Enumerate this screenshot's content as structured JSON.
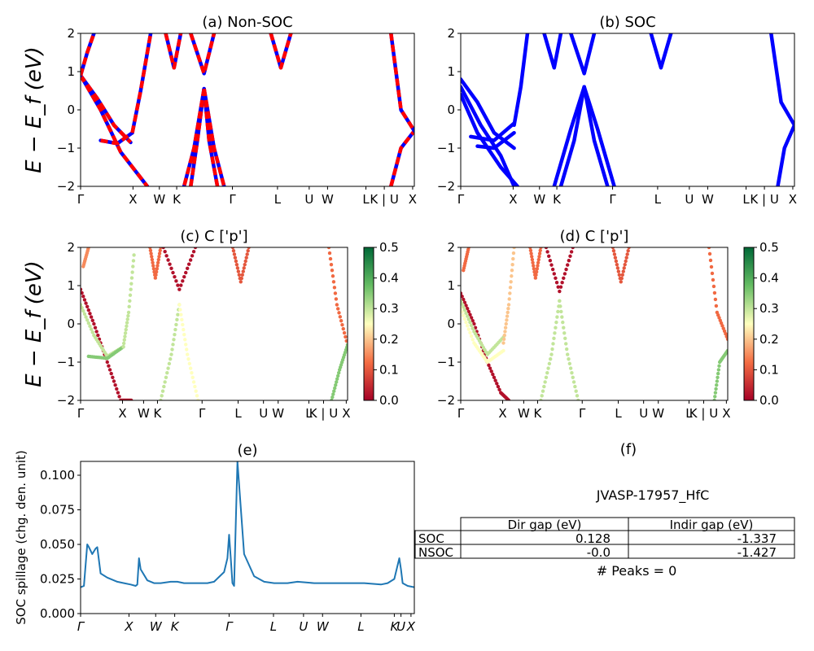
{
  "chart_data": [
    {
      "id": "a",
      "type": "line",
      "title": "(a) Non-SOC",
      "ylabel": "E − E_f (eV)",
      "ylim": [
        -2,
        2
      ],
      "yticks": [
        "2",
        "1",
        "0",
        "−1",
        "−2"
      ],
      "xticks": [
        "Γ",
        "X",
        "W",
        "K",
        "Γ",
        "L",
        "U",
        "W",
        "L",
        "K | U",
        "X"
      ],
      "colors": [
        "#ff0000",
        "#0000ff"
      ],
      "series": [
        {
          "x": [
            0.0,
            0.05,
            0.1,
            0.15
          ],
          "y": [
            0.9,
            0.3,
            -0.4,
            -0.85
          ]
        },
        {
          "x": [
            0.0,
            0.06,
            0.12,
            0.2
          ],
          "y": [
            0.9,
            0.0,
            -1.1,
            -2.0
          ]
        },
        {
          "x": [
            0.0,
            0.02,
            0.04
          ],
          "y": [
            0.9,
            1.5,
            2.0
          ]
        },
        {
          "x": [
            0.06,
            0.11,
            0.155
          ],
          "y": [
            -0.8,
            -0.88,
            -0.6
          ]
        },
        {
          "x": [
            0.155,
            0.18,
            0.21
          ],
          "y": [
            -0.6,
            0.5,
            2.0
          ]
        },
        {
          "x": [
            0.255,
            0.28,
            0.3
          ],
          "y": [
            2.0,
            1.1,
            2.0
          ]
        },
        {
          "x": [
            0.33,
            0.37,
            0.4
          ],
          "y": [
            2.0,
            0.95,
            2.0
          ]
        },
        {
          "x": [
            0.37,
            0.35,
            0.33
          ],
          "y": [
            0.55,
            -0.8,
            -2.0
          ]
        },
        {
          "x": [
            0.37,
            0.385,
            0.41
          ],
          "y": [
            0.55,
            -0.8,
            -2.0
          ]
        },
        {
          "x": [
            0.37,
            0.34,
            0.31
          ],
          "y": [
            0.55,
            -1.0,
            -2.0
          ]
        },
        {
          "x": [
            0.37,
            0.4,
            0.43
          ],
          "y": [
            0.55,
            -1.0,
            -2.0
          ]
        },
        {
          "x": [
            0.57,
            0.6,
            0.63
          ],
          "y": [
            2.0,
            1.1,
            2.0
          ]
        },
        {
          "x": [
            0.93,
            0.96,
            1.0
          ],
          "y": [
            -2.0,
            -1.0,
            -0.55
          ]
        },
        {
          "x": [
            0.93,
            0.96,
            1.0
          ],
          "y": [
            2.0,
            0.0,
            -0.55
          ]
        }
      ]
    },
    {
      "id": "b",
      "type": "line",
      "title": "(b) SOC",
      "ylim": [
        -2,
        2
      ],
      "yticks": [
        "2",
        "1",
        "0",
        "−1",
        "−2"
      ],
      "xticks": [
        "Γ",
        "X",
        "W",
        "K",
        "Γ",
        "L",
        "U",
        "W",
        "L",
        "K | U",
        "X"
      ],
      "colors": [
        "#0000ff"
      ],
      "series": [
        {
          "x": [
            0.0,
            0.05,
            0.1,
            0.16
          ],
          "y": [
            0.8,
            0.2,
            -0.6,
            -1.0
          ]
        },
        {
          "x": [
            0.0,
            0.06,
            0.12,
            0.16
          ],
          "y": [
            0.6,
            -0.4,
            -1.2,
            -2.0
          ]
        },
        {
          "x": [
            0.0,
            0.05,
            0.12,
            0.17
          ],
          "y": [
            0.4,
            -0.6,
            -1.5,
            -2.0
          ]
        },
        {
          "x": [
            0.03,
            0.1,
            0.16
          ],
          "y": [
            -0.7,
            -0.8,
            -0.35
          ]
        },
        {
          "x": [
            0.05,
            0.1,
            0.16
          ],
          "y": [
            -0.95,
            -1.0,
            -0.6
          ]
        },
        {
          "x": [
            0.16,
            0.18,
            0.2
          ],
          "y": [
            -0.4,
            0.6,
            2.0
          ]
        },
        {
          "x": [
            0.25,
            0.28,
            0.3
          ],
          "y": [
            2.0,
            1.1,
            2.0
          ]
        },
        {
          "x": [
            0.33,
            0.37,
            0.4
          ],
          "y": [
            2.0,
            0.95,
            2.0
          ]
        },
        {
          "x": [
            0.37,
            0.34,
            0.3
          ],
          "y": [
            0.6,
            -0.8,
            -2.0
          ]
        },
        {
          "x": [
            0.37,
            0.4,
            0.44
          ],
          "y": [
            0.6,
            -0.8,
            -2.0
          ]
        },
        {
          "x": [
            0.37,
            0.33,
            0.28
          ],
          "y": [
            0.6,
            -0.5,
            -2.0
          ]
        },
        {
          "x": [
            0.37,
            0.41,
            0.46
          ],
          "y": [
            0.6,
            -0.5,
            -2.0
          ]
        },
        {
          "x": [
            0.57,
            0.6,
            0.63
          ],
          "y": [
            2.0,
            1.1,
            2.0
          ]
        },
        {
          "x": [
            0.93,
            0.96,
            1.0
          ],
          "y": [
            2.0,
            0.2,
            -0.4
          ]
        },
        {
          "x": [
            0.95,
            0.97,
            1.0
          ],
          "y": [
            -2.0,
            -1.0,
            -0.4
          ]
        }
      ]
    },
    {
      "id": "c",
      "type": "scatter",
      "title": "(c)  C ['p']",
      "ylabel": "E − E_f (eV)",
      "ylim": [
        -2,
        2
      ],
      "yticks": [
        "2",
        "1",
        "0",
        "−1",
        "−2"
      ],
      "xticks": [
        "Γ",
        "X",
        "W",
        "K",
        "Γ",
        "L",
        "U",
        "W",
        "L",
        "K | U",
        "X"
      ],
      "colorbar": {
        "min": 0.0,
        "max": 0.5,
        "ticks": [
          "0.5",
          "0.4",
          "0.3",
          "0.2",
          "0.1",
          "0.0"
        ]
      },
      "series": [
        {
          "x": [
            0.0,
            0.05,
            0.1,
            0.15,
            0.19
          ],
          "y": [
            0.9,
            0.0,
            -1.0,
            -2.0,
            -2.0
          ],
          "c": 0.02
        },
        {
          "x": [
            0.0,
            0.05,
            0.1,
            0.16
          ],
          "y": [
            0.5,
            -0.3,
            -0.85,
            -0.6
          ],
          "c": 0.3
        },
        {
          "x": [
            0.03,
            0.1,
            0.16
          ],
          "y": [
            -0.85,
            -0.9,
            -0.6
          ],
          "c": 0.35
        },
        {
          "x": [
            0.16,
            0.18,
            0.2
          ],
          "y": [
            -0.6,
            0.3,
            1.8
          ],
          "c": 0.3
        },
        {
          "x": [
            0.03,
            0.01
          ],
          "y": [
            2.0,
            1.5
          ],
          "c": 0.15
        },
        {
          "x": [
            0.26,
            0.28,
            0.3
          ],
          "y": [
            2.0,
            1.2,
            2.0
          ],
          "c": 0.12
        },
        {
          "x": [
            0.31,
            0.37,
            0.43
          ],
          "y": [
            2.0,
            0.9,
            2.0
          ],
          "c": 0.02
        },
        {
          "x": [
            0.37,
            0.34,
            0.3
          ],
          "y": [
            0.5,
            -0.8,
            -2.0
          ],
          "c": 0.3
        },
        {
          "x": [
            0.37,
            0.4,
            0.44
          ],
          "y": [
            0.5,
            -0.8,
            -2.0
          ],
          "c": 0.25
        },
        {
          "x": [
            0.57,
            0.6,
            0.63
          ],
          "y": [
            2.0,
            1.1,
            2.0
          ],
          "c": 0.1
        },
        {
          "x": [
            0.93,
            0.96,
            1.0
          ],
          "y": [
            2.0,
            0.5,
            -0.55
          ],
          "c": 0.12
        },
        {
          "x": [
            0.94,
            0.97,
            1.0
          ],
          "y": [
            -2.0,
            -1.2,
            -0.55
          ],
          "c": 0.35
        }
      ]
    },
    {
      "id": "d",
      "type": "scatter",
      "title": "(d) C ['p']",
      "ylim": [
        -2,
        2
      ],
      "yticks": [
        "2",
        "1",
        "0",
        "−1",
        "−2"
      ],
      "xticks": [
        "Γ",
        "X",
        "W",
        "K",
        "Γ",
        "L",
        "U",
        "W",
        "L",
        "K | U",
        "X"
      ],
      "colorbar": {
        "min": 0.0,
        "max": 0.5,
        "ticks": [
          "0.5",
          "0.4",
          "0.3",
          "0.2",
          "0.1",
          "0.0"
        ]
      },
      "series": [
        {
          "x": [
            0.0,
            0.05,
            0.1,
            0.15,
            0.18
          ],
          "y": [
            0.8,
            0.0,
            -1.0,
            -1.8,
            -2.0
          ],
          "c": 0.02
        },
        {
          "x": [
            0.0,
            0.05,
            0.1,
            0.16
          ],
          "y": [
            0.6,
            -0.2,
            -0.8,
            -0.35
          ],
          "c": 0.3
        },
        {
          "x": [
            0.0,
            0.05,
            0.1,
            0.16
          ],
          "y": [
            0.4,
            -0.5,
            -1.0,
            -0.7
          ],
          "c": 0.25
        },
        {
          "x": [
            0.16,
            0.18,
            0.2
          ],
          "y": [
            -0.5,
            0.5,
            2.0
          ],
          "c": 0.2
        },
        {
          "x": [
            0.03,
            0.01
          ],
          "y": [
            2.0,
            1.4
          ],
          "c": 0.12
        },
        {
          "x": [
            0.26,
            0.28,
            0.3
          ],
          "y": [
            2.0,
            1.2,
            2.0
          ],
          "c": 0.12
        },
        {
          "x": [
            0.32,
            0.37,
            0.42
          ],
          "y": [
            2.0,
            0.85,
            2.0
          ],
          "c": 0.02
        },
        {
          "x": [
            0.37,
            0.34,
            0.3
          ],
          "y": [
            0.6,
            -0.8,
            -2.0
          ],
          "c": 0.3
        },
        {
          "x": [
            0.37,
            0.4,
            0.44
          ],
          "y": [
            0.6,
            -0.8,
            -2.0
          ],
          "c": 0.3
        },
        {
          "x": [
            0.57,
            0.6,
            0.63
          ],
          "y": [
            2.0,
            1.1,
            2.0
          ],
          "c": 0.1
        },
        {
          "x": [
            0.93,
            0.96,
            1.0
          ],
          "y": [
            2.0,
            0.3,
            -0.4
          ],
          "c": 0.12
        },
        {
          "x": [
            0.95,
            0.97,
            1.0
          ],
          "y": [
            -2.0,
            -1.0,
            -0.7
          ],
          "c": 0.35
        }
      ]
    },
    {
      "id": "e",
      "type": "line",
      "title": "(e)",
      "ylabel": "SOC spillage (chg. den. unit)",
      "ylim": [
        0.0,
        0.11
      ],
      "yticks": [
        "0.100",
        "0.075",
        "0.050",
        "0.025",
        "0.000"
      ],
      "xticks": [
        "Γ",
        "X",
        "W",
        "K",
        "Γ",
        "L",
        "U",
        "W",
        "L",
        "K",
        "U",
        "X"
      ],
      "color": "#1f77b4",
      "x": [
        0.0,
        0.01,
        0.02,
        0.025,
        0.035,
        0.045,
        0.05,
        0.06,
        0.08,
        0.11,
        0.13,
        0.15,
        0.165,
        0.17,
        0.175,
        0.18,
        0.2,
        0.22,
        0.24,
        0.27,
        0.29,
        0.31,
        0.33,
        0.36,
        0.38,
        0.4,
        0.43,
        0.44,
        0.445,
        0.45,
        0.455,
        0.46,
        0.47,
        0.49,
        0.52,
        0.55,
        0.58,
        0.61,
        0.62,
        0.65,
        0.7,
        0.75,
        0.8,
        0.85,
        0.9,
        0.92,
        0.94,
        0.955,
        0.96,
        0.965,
        0.98,
        1.0
      ],
      "y": [
        0.019,
        0.02,
        0.05,
        0.048,
        0.043,
        0.047,
        0.048,
        0.029,
        0.026,
        0.023,
        0.022,
        0.021,
        0.02,
        0.021,
        0.04,
        0.032,
        0.024,
        0.022,
        0.022,
        0.023,
        0.023,
        0.022,
        0.022,
        0.022,
        0.022,
        0.023,
        0.03,
        0.04,
        0.057,
        0.04,
        0.022,
        0.02,
        0.11,
        0.043,
        0.027,
        0.023,
        0.022,
        0.022,
        0.022,
        0.023,
        0.022,
        0.022,
        0.022,
        0.022,
        0.021,
        0.022,
        0.025,
        0.04,
        0.032,
        0.022,
        0.02,
        0.019
      ]
    },
    {
      "id": "f",
      "type": "table",
      "title": "(f)",
      "subtitle": "JVASP-17957_HfC",
      "columns": [
        "Dir gap (eV)",
        "Indir gap (eV)"
      ],
      "rows": [
        {
          "label": "SOC",
          "values": [
            "0.128",
            "-1.337"
          ]
        },
        {
          "label": "NSOC",
          "values": [
            "-0.0",
            "-1.427"
          ]
        }
      ],
      "footer": "# Peaks = 0"
    }
  ]
}
